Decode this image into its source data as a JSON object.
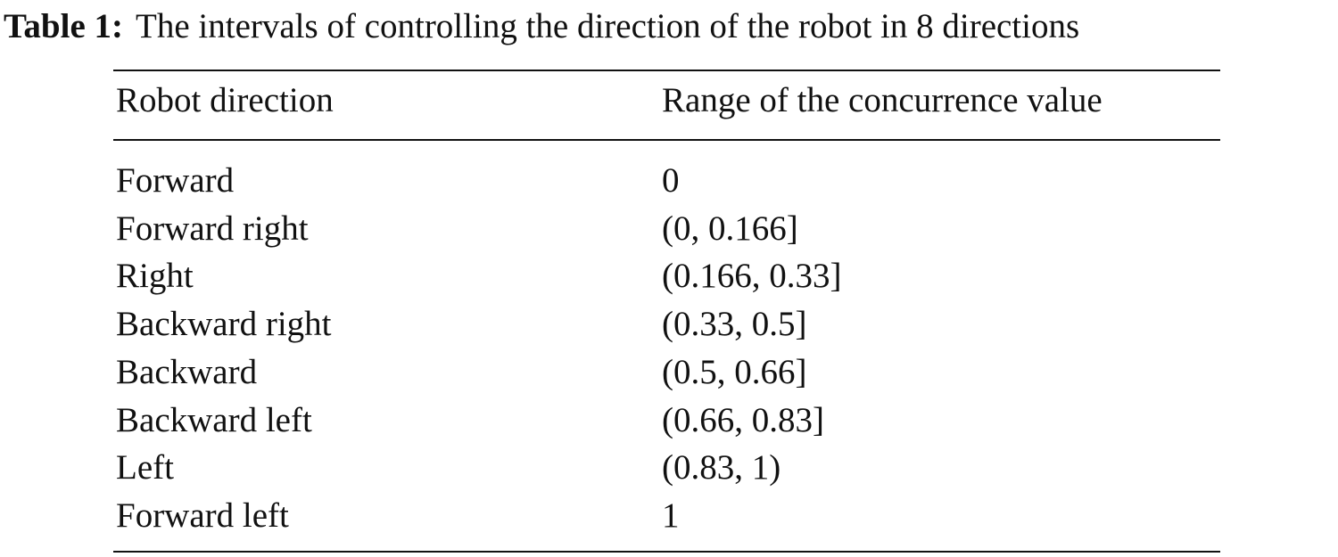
{
  "caption": {
    "label": "Table 1:",
    "text": "The intervals of controlling the direction of the robot in 8 directions"
  },
  "table": {
    "headers": [
      "Robot direction",
      "Range of the concurrence value"
    ],
    "rows": [
      [
        "Forward",
        "0"
      ],
      [
        "Forward right",
        "(0, 0.166]"
      ],
      [
        "Right",
        "(0.166, 0.33]"
      ],
      [
        "Backward right",
        "(0.33, 0.5]"
      ],
      [
        "Backward",
        "(0.5, 0.66]"
      ],
      [
        "Backward left",
        "(0.66, 0.83]"
      ],
      [
        "Left",
        "(0.83, 1)"
      ],
      [
        "Forward left",
        "1"
      ]
    ]
  }
}
